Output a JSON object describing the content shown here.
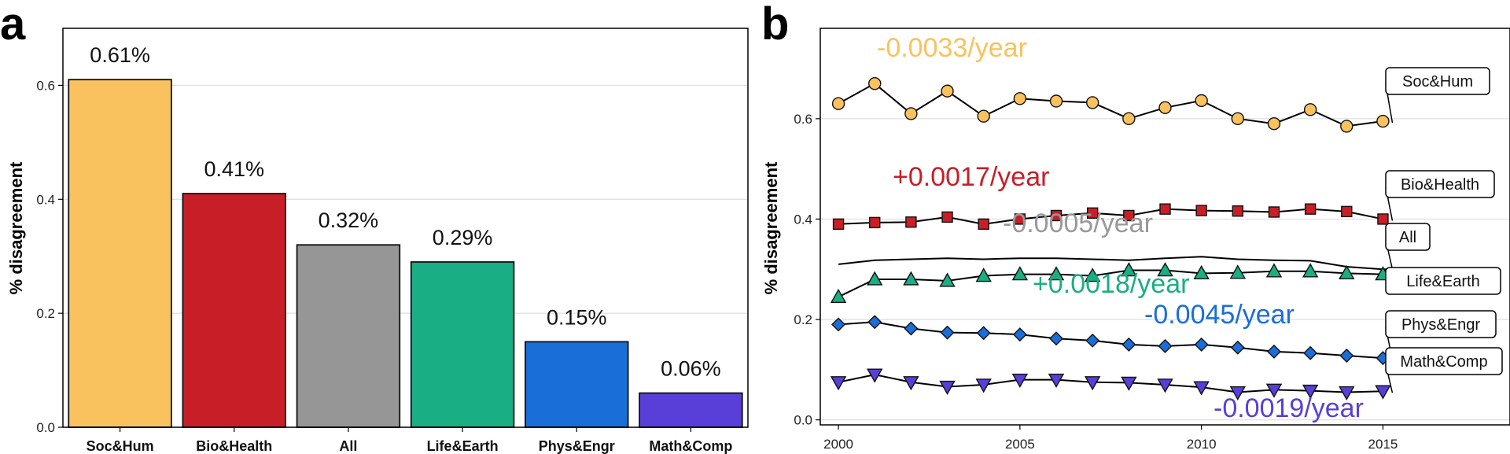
{
  "panels": {
    "a": {
      "letter": "a"
    },
    "b": {
      "letter": "b"
    }
  },
  "chart_data": [
    {
      "type": "bar",
      "panel": "a",
      "title": "",
      "xlabel": "",
      "ylabel": "% disagreement",
      "ylim": [
        0,
        0.7
      ],
      "yticks": [
        "0.0",
        "0.2",
        "0.4",
        "0.6"
      ],
      "grid": true,
      "categories": [
        "Soc&Hum",
        "Bio&Health",
        "All",
        "Life&Earth",
        "Phys&Engr",
        "Math&Comp"
      ],
      "values": [
        0.61,
        0.41,
        0.32,
        0.29,
        0.15,
        0.06
      ],
      "data_labels": [
        "0.61%",
        "0.41%",
        "0.32%",
        "0.29%",
        "0.15%",
        "0.06%"
      ],
      "colors": [
        "#F9C25E",
        "#C81E28",
        "#969696",
        "#19AE83",
        "#1A6ED8",
        "#5A3ED8"
      ]
    },
    {
      "type": "line",
      "panel": "b",
      "title": "",
      "xlabel": "",
      "ylabel": "% disagreement",
      "xlim": [
        1999.5,
        2018.5
      ],
      "ylim": [
        -0.01,
        0.78
      ],
      "xticks": [
        "2000",
        "2005",
        "2010",
        "2015"
      ],
      "yticks": [
        "0.0",
        "0.2",
        "0.4",
        "0.6"
      ],
      "grid": true,
      "x": [
        2000,
        2001,
        2002,
        2003,
        2004,
        2005,
        2006,
        2007,
        2008,
        2009,
        2010,
        2011,
        2012,
        2013,
        2014,
        2015
      ],
      "series": [
        {
          "name": "Soc&Hum",
          "marker": "circle",
          "color": "#F9C25E",
          "values": [
            0.63,
            0.67,
            0.61,
            0.655,
            0.605,
            0.64,
            0.635,
            0.632,
            0.6,
            0.622,
            0.636,
            0.6,
            0.59,
            0.618,
            0.585,
            0.595
          ],
          "slope_label": "-0.0033/year"
        },
        {
          "name": "Bio&Health",
          "marker": "square",
          "color": "#C81E28",
          "values": [
            0.39,
            0.393,
            0.394,
            0.404,
            0.39,
            0.4,
            0.407,
            0.412,
            0.407,
            0.42,
            0.417,
            0.416,
            0.414,
            0.42,
            0.415,
            0.4
          ],
          "slope_label": "+0.0017/year"
        },
        {
          "name": "All",
          "marker": "none",
          "color": "#000000",
          "values": [
            0.31,
            0.318,
            0.32,
            0.322,
            0.32,
            0.322,
            0.322,
            0.32,
            0.318,
            0.322,
            0.325,
            0.32,
            0.318,
            0.317,
            0.305,
            0.3
          ],
          "slope_label": "-0.0005/year",
          "slope_color": "#999999"
        },
        {
          "name": "Life&Earth",
          "marker": "triangle-up",
          "color": "#19AE83",
          "values": [
            0.245,
            0.28,
            0.28,
            0.277,
            0.287,
            0.29,
            0.29,
            0.287,
            0.298,
            0.298,
            0.292,
            0.293,
            0.296,
            0.296,
            0.292,
            0.29
          ],
          "slope_label": "+0.0018/year"
        },
        {
          "name": "Phys&Engr",
          "marker": "diamond",
          "color": "#1A6ED8",
          "values": [
            0.19,
            0.195,
            0.182,
            0.174,
            0.173,
            0.17,
            0.162,
            0.158,
            0.15,
            0.147,
            0.15,
            0.144,
            0.136,
            0.133,
            0.128,
            0.123
          ],
          "slope_label": "-0.0045/year"
        },
        {
          "name": "Math&Comp",
          "marker": "triangle-down",
          "color": "#5A3ED8",
          "values": [
            0.075,
            0.09,
            0.075,
            0.066,
            0.07,
            0.08,
            0.08,
            0.075,
            0.074,
            0.07,
            0.065,
            0.055,
            0.06,
            0.058,
            0.055,
            0.057
          ],
          "slope_label": "-0.0019/year"
        }
      ]
    }
  ]
}
